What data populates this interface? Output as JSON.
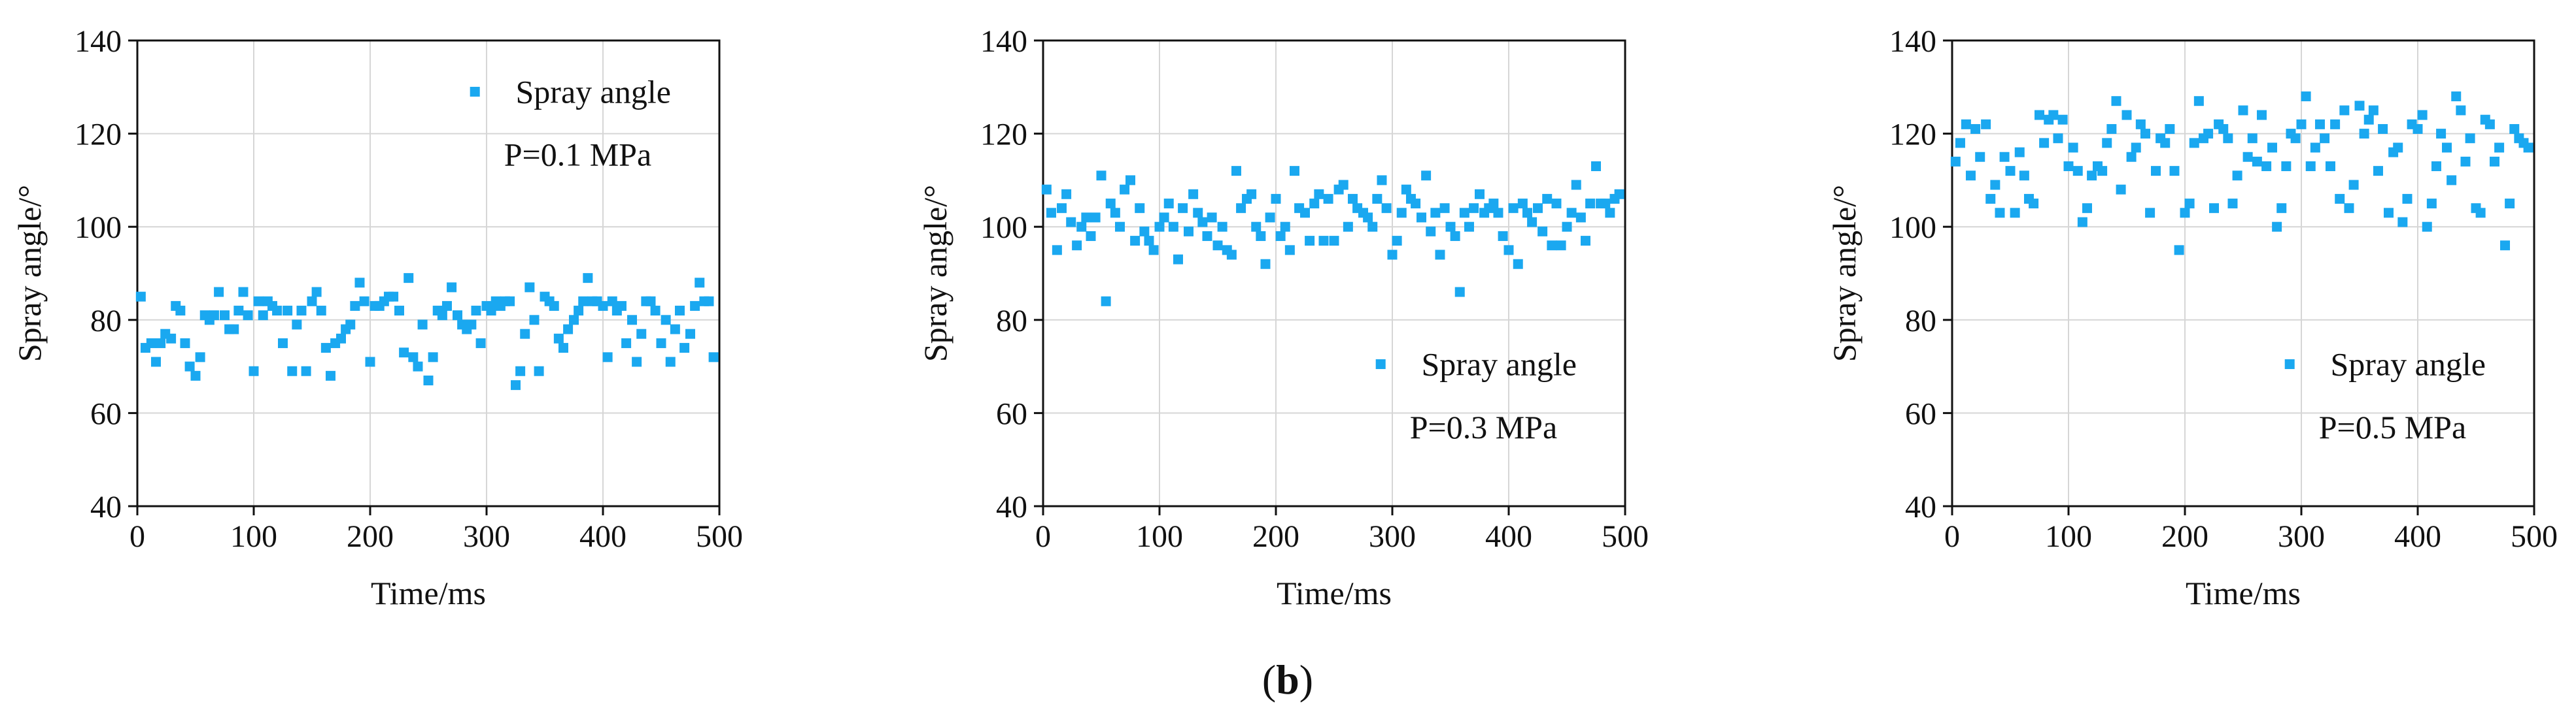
{
  "figure": {
    "caption_open": "(",
    "caption_letter": "b",
    "caption_close": ")"
  },
  "chart_data": [
    {
      "type": "scatter",
      "title": "",
      "xlabel": "Time/ms",
      "ylabel": "Spray angle/°",
      "xlim": [
        0,
        500
      ],
      "ylim": [
        40,
        140
      ],
      "xticks": [
        0,
        100,
        200,
        300,
        400,
        500
      ],
      "yticks": [
        40,
        60,
        80,
        100,
        120,
        140
      ],
      "grid": true,
      "legend_position": "top-right",
      "annotation": "P=0.1 MPa",
      "marker_color": "#1AA8F0",
      "series": [
        {
          "name": "Spray angle",
          "x": [
            3,
            7,
            12,
            16,
            20,
            24,
            29,
            33,
            37,
            41,
            45,
            50,
            54,
            58,
            62,
            66,
            70,
            75,
            79,
            83,
            87,
            91,
            95,
            100,
            104,
            108,
            112,
            116,
            120,
            125,
            129,
            133,
            137,
            141,
            145,
            150,
            154,
            158,
            162,
            166,
            170,
            175,
            179,
            183,
            187,
            191,
            195,
            200,
            204,
            208,
            212,
            216,
            220,
            225,
            229,
            233,
            237,
            241,
            245,
            250,
            254,
            258,
            262,
            266,
            270,
            275,
            279,
            283,
            287,
            291,
            295,
            300,
            304,
            308,
            312,
            316,
            320,
            325,
            329,
            333,
            337,
            341,
            345,
            350,
            354,
            358,
            362,
            366,
            370,
            375,
            379,
            383,
            387,
            391,
            395,
            400,
            404,
            408,
            412,
            416,
            420,
            425,
            429,
            433,
            437,
            441,
            445,
            450,
            454,
            458,
            462,
            466,
            470,
            475,
            479,
            483,
            487,
            491,
            495
          ],
          "y": [
            85,
            74,
            75,
            71,
            75,
            77,
            76,
            83,
            82,
            75,
            70,
            68,
            72,
            81,
            80,
            81,
            86,
            81,
            78,
            78,
            82,
            86,
            81,
            69,
            84,
            81,
            84,
            83,
            82,
            75,
            82,
            69,
            79,
            82,
            69,
            84,
            86,
            82,
            74,
            68,
            75,
            76,
            78,
            79,
            83,
            88,
            84,
            71,
            83,
            83,
            84,
            85,
            85,
            82,
            73,
            89,
            72,
            70,
            79,
            67,
            72,
            82,
            81,
            83,
            87,
            81,
            79,
            78,
            79,
            82,
            75,
            83,
            82,
            84,
            83,
            84,
            84,
            66,
            69,
            77,
            87,
            80,
            69,
            85,
            84,
            83,
            76,
            74,
            78,
            80,
            82,
            84,
            89,
            84,
            84,
            83,
            72,
            84,
            82,
            83,
            75,
            80,
            71,
            77,
            84,
            84,
            82,
            75,
            80,
            71,
            78,
            82,
            74,
            77,
            83,
            88,
            84,
            84,
            72
          ]
        }
      ]
    },
    {
      "type": "scatter",
      "title": "",
      "xlabel": "Time/ms",
      "ylabel": "Spray angle/°",
      "xlim": [
        0,
        500
      ],
      "ylim": [
        40,
        140
      ],
      "xticks": [
        0,
        100,
        200,
        300,
        400,
        500
      ],
      "yticks": [
        40,
        60,
        80,
        100,
        120,
        140
      ],
      "grid": true,
      "legend_position": "center-right",
      "annotation": "P=0.3 MPa",
      "marker_color": "#1AA8F0",
      "series": [
        {
          "name": "Spray angle",
          "x": [
            3,
            7,
            12,
            16,
            20,
            24,
            29,
            33,
            37,
            41,
            45,
            50,
            54,
            58,
            62,
            66,
            70,
            75,
            79,
            83,
            87,
            91,
            95,
            100,
            104,
            108,
            112,
            116,
            120,
            125,
            129,
            133,
            137,
            141,
            145,
            150,
            154,
            158,
            162,
            166,
            170,
            175,
            179,
            183,
            187,
            191,
            195,
            200,
            204,
            208,
            212,
            216,
            220,
            225,
            229,
            233,
            237,
            241,
            245,
            250,
            254,
            258,
            262,
            266,
            270,
            275,
            279,
            283,
            287,
            291,
            295,
            300,
            304,
            308,
            312,
            316,
            320,
            325,
            329,
            333,
            337,
            341,
            345,
            350,
            354,
            358,
            362,
            366,
            370,
            375,
            379,
            383,
            387,
            391,
            395,
            400,
            404,
            408,
            412,
            416,
            420,
            425,
            429,
            433,
            437,
            441,
            445,
            450,
            454,
            458,
            462,
            466,
            470,
            475,
            479,
            483,
            487,
            491,
            495
          ],
          "y": [
            108,
            103,
            95,
            104,
            107,
            101,
            96,
            100,
            102,
            98,
            102,
            111,
            84,
            105,
            103,
            100,
            108,
            110,
            97,
            104,
            99,
            97,
            95,
            100,
            102,
            105,
            100,
            93,
            104,
            99,
            107,
            103,
            101,
            98,
            102,
            96,
            100,
            95,
            94,
            112,
            104,
            106,
            107,
            100,
            98,
            92,
            102,
            106,
            98,
            100,
            95,
            112,
            104,
            103,
            97,
            105,
            107,
            97,
            106,
            97,
            108,
            109,
            100,
            106,
            104,
            103,
            102,
            100,
            106,
            110,
            104,
            94,
            97,
            103,
            108,
            106,
            105,
            102,
            111,
            99,
            103,
            94,
            104,
            100,
            98,
            86,
            103,
            100,
            104,
            107,
            103,
            104,
            105,
            103,
            98,
            95,
            104,
            92,
            105,
            103,
            101,
            104,
            99,
            106,
            96,
            105,
            96,
            100,
            103,
            109,
            102,
            97,
            105,
            113,
            105,
            105,
            103,
            106,
            107
          ]
        }
      ]
    },
    {
      "type": "scatter",
      "title": "",
      "xlabel": "Time/ms",
      "ylabel": "Spray angle/°",
      "xlim": [
        0,
        500
      ],
      "ylim": [
        40,
        140
      ],
      "xticks": [
        0,
        100,
        200,
        300,
        400,
        500
      ],
      "yticks": [
        40,
        60,
        80,
        100,
        120,
        140
      ],
      "grid": true,
      "legend_position": "center-right",
      "annotation": "P=0.5 MPa",
      "marker_color": "#1AA8F0",
      "series": [
        {
          "name": "Spray angle",
          "x": [
            3,
            7,
            12,
            16,
            20,
            24,
            29,
            33,
            37,
            41,
            45,
            50,
            54,
            58,
            62,
            66,
            70,
            75,
            79,
            83,
            87,
            91,
            95,
            100,
            104,
            108,
            112,
            116,
            120,
            125,
            129,
            133,
            137,
            141,
            145,
            150,
            154,
            158,
            162,
            166,
            170,
            175,
            179,
            183,
            187,
            191,
            195,
            200,
            204,
            208,
            212,
            216,
            220,
            225,
            229,
            233,
            237,
            241,
            245,
            250,
            254,
            258,
            262,
            266,
            270,
            275,
            279,
            283,
            287,
            291,
            295,
            300,
            304,
            308,
            312,
            316,
            320,
            325,
            329,
            333,
            337,
            341,
            345,
            350,
            354,
            358,
            362,
            366,
            370,
            375,
            379,
            383,
            387,
            391,
            395,
            400,
            404,
            408,
            412,
            416,
            420,
            425,
            429,
            433,
            437,
            441,
            445,
            450,
            454,
            458,
            462,
            466,
            470,
            475,
            479,
            483,
            487,
            491,
            495
          ],
          "y": [
            114,
            118,
            122,
            111,
            121,
            115,
            122,
            106,
            109,
            103,
            115,
            112,
            103,
            116,
            111,
            106,
            105,
            124,
            118,
            123,
            124,
            119,
            123,
            113,
            117,
            112,
            101,
            104,
            111,
            113,
            112,
            118,
            121,
            127,
            108,
            124,
            115,
            117,
            122,
            120,
            103,
            112,
            119,
            118,
            121,
            112,
            95,
            103,
            105,
            118,
            127,
            119,
            120,
            104,
            122,
            121,
            119,
            105,
            111,
            125,
            115,
            119,
            114,
            124,
            113,
            117,
            100,
            104,
            113,
            120,
            119,
            122,
            128,
            113,
            117,
            122,
            119,
            113,
            122,
            106,
            125,
            104,
            109,
            126,
            120,
            123,
            125,
            112,
            121,
            103,
            116,
            117,
            101,
            106,
            122,
            121,
            124,
            100,
            105,
            113,
            120,
            117,
            110,
            128,
            125,
            114,
            119,
            104,
            103,
            123,
            122,
            114,
            117,
            96,
            105,
            121,
            119,
            118,
            117
          ]
        }
      ]
    }
  ]
}
